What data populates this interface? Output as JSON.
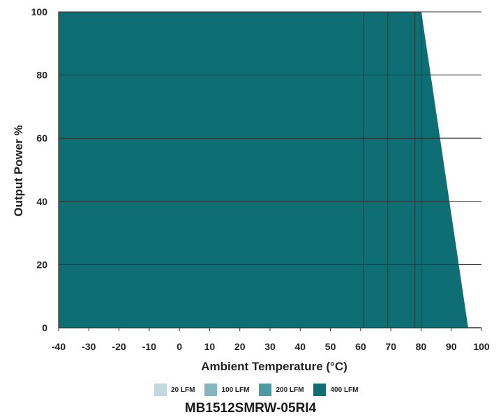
{
  "chart_data": {
    "type": "area",
    "title": "",
    "xlabel": "Ambient Temperature (°C)",
    "ylabel": "Output Power %",
    "xlim": [
      -40,
      100
    ],
    "ylim": [
      0,
      100
    ],
    "xticks": [
      -40,
      -30,
      -20,
      -10,
      0,
      10,
      20,
      30,
      40,
      50,
      60,
      70,
      80,
      90,
      100
    ],
    "yticks": [
      0,
      20,
      40,
      60,
      80,
      100
    ],
    "grid": "horizontal",
    "legend_position": "bottom",
    "series": [
      {
        "name": "20 LFM",
        "color": "#c1d9dc",
        "x": [
          -40,
          61,
          95.5
        ],
        "y": [
          100,
          100,
          0
        ]
      },
      {
        "name": "100 LFM",
        "color": "#86b6bd",
        "x": [
          -40,
          69,
          95.5
        ],
        "y": [
          100,
          100,
          0
        ]
      },
      {
        "name": "200 LFM",
        "color": "#4f9aa3",
        "x": [
          -40,
          78,
          95.5
        ],
        "y": [
          100,
          100,
          0
        ]
      },
      {
        "name": "400 LFM",
        "color": "#0f6e73",
        "x": [
          -40,
          80,
          95.5
        ],
        "y": [
          100,
          100,
          0
        ]
      }
    ]
  },
  "model": "MB1512SMRW-05RI4"
}
